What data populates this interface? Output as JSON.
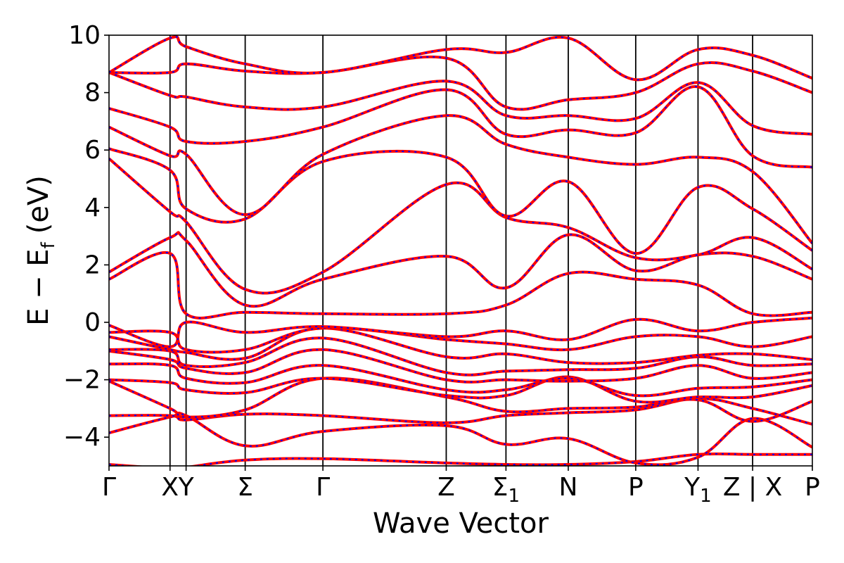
{
  "chart_data": {
    "type": "line",
    "title": "",
    "xlabel": "Wave Vector",
    "ylabel": "E − E_f (eV)",
    "ylabel_parts": {
      "main": "E − E",
      "sub": "f",
      "unit": "(eV)"
    },
    "ylim": [
      -5,
      10
    ],
    "yticks": [
      -4,
      -2,
      0,
      2,
      4,
      6,
      8,
      10
    ],
    "ytick_labels": [
      "−4",
      "−2",
      "0",
      "2",
      "4",
      "6",
      "8",
      "10"
    ],
    "xlim": [
      0,
      10
    ],
    "grid": false,
    "line_style": {
      "solid_color": "#ff0000",
      "dashed_color": "#0000ff"
    },
    "kpoints": [
      {
        "pos": 0.0,
        "label": "Γ",
        "sub": ""
      },
      {
        "pos": 0.95,
        "label": "X",
        "sub": ""
      },
      {
        "pos": 1.2,
        "label": "Y",
        "sub": ""
      },
      {
        "pos": 2.12,
        "label": "Σ",
        "sub": ""
      },
      {
        "pos": 3.33,
        "label": "Γ",
        "sub": ""
      },
      {
        "pos": 5.25,
        "label": "Z",
        "sub": ""
      },
      {
        "pos": 6.18,
        "label": "Σ",
        "sub": "1"
      },
      {
        "pos": 7.15,
        "label": "N",
        "sub": ""
      },
      {
        "pos": 8.2,
        "label": "P",
        "sub": ""
      },
      {
        "pos": 9.17,
        "label": "Y",
        "sub": "1"
      },
      {
        "pos": 10.02,
        "label": "Z | X",
        "sub": ""
      },
      {
        "pos": 10.95,
        "label": "P",
        "sub": ""
      }
    ],
    "bands": [
      {
        "name": "b01",
        "values": [
          -4.95,
          -5.1,
          -5.05,
          -4.8,
          -4.75,
          -4.9,
          -4.95,
          -4.95,
          -4.85,
          -4.6,
          -4.6,
          -4.6
        ]
      },
      {
        "name": "b02",
        "values": [
          -3.85,
          -3.3,
          -3.25,
          -4.3,
          -3.8,
          -3.6,
          -4.25,
          -4.05,
          -4.9,
          -4.7,
          -3.35,
          -4.35
        ]
      },
      {
        "name": "b03",
        "values": [
          -3.25,
          -3.25,
          -3.4,
          -3.2,
          -3.25,
          -3.5,
          -3.25,
          -3.15,
          -3.05,
          -2.65,
          -3.0,
          -3.55
        ]
      },
      {
        "name": "b04",
        "values": [
          -2.05,
          -3.0,
          -3.3,
          -3.05,
          -1.95,
          -2.6,
          -3.1,
          -3.0,
          -2.95,
          -2.7,
          -3.45,
          -2.75
        ]
      },
      {
        "name": "b05",
        "values": [
          -2.0,
          -2.1,
          -2.35,
          -2.45,
          -1.95,
          -2.55,
          -2.55,
          -1.9,
          -2.75,
          -2.6,
          -2.6,
          -2.2
        ]
      },
      {
        "name": "b06",
        "values": [
          -1.45,
          -1.5,
          -1.95,
          -2.1,
          -1.5,
          -2.35,
          -2.35,
          -1.95,
          -2.55,
          -2.3,
          -2.25,
          -2.0
        ]
      },
      {
        "name": "b07",
        "values": [
          -1.0,
          -1.3,
          -1.6,
          -1.75,
          -0.95,
          -2.0,
          -2.0,
          -2.05,
          -1.95,
          -1.5,
          -1.95,
          -1.75
        ]
      },
      {
        "name": "b08",
        "values": [
          -0.95,
          -1.0,
          -1.5,
          -1.4,
          -0.55,
          -1.75,
          -1.7,
          -1.65,
          -1.6,
          -1.2,
          -1.5,
          -1.45
        ]
      },
      {
        "name": "b09",
        "values": [
          -0.5,
          -0.95,
          -1.05,
          -1.25,
          -0.2,
          -1.2,
          -1.1,
          -1.4,
          -1.4,
          -1.15,
          -1.1,
          -1.3
        ]
      },
      {
        "name": "b10",
        "values": [
          -0.35,
          -0.35,
          -0.95,
          -0.95,
          -0.2,
          -0.6,
          -0.75,
          -0.95,
          -0.5,
          -0.5,
          -0.85,
          -0.5
        ]
      },
      {
        "name": "b11",
        "values": [
          -0.1,
          -0.85,
          0.0,
          -0.35,
          -0.15,
          -0.5,
          -0.3,
          -0.6,
          0.1,
          -0.3,
          0.0,
          0.15
        ]
      },
      {
        "name": "b12",
        "values": [
          1.5,
          2.4,
          0.3,
          0.35,
          0.3,
          0.3,
          0.6,
          1.7,
          1.5,
          1.3,
          0.3,
          0.35
        ]
      },
      {
        "name": "b13",
        "values": [
          1.75,
          2.95,
          2.85,
          0.6,
          1.5,
          2.3,
          1.2,
          3.05,
          1.8,
          2.35,
          2.3,
          1.5
        ]
      },
      {
        "name": "b14",
        "values": [
          5.7,
          3.85,
          3.5,
          1.15,
          1.75,
          4.8,
          3.65,
          3.3,
          2.25,
          2.35,
          2.95,
          1.85
        ]
      },
      {
        "name": "b15",
        "values": [
          6.05,
          5.3,
          3.95,
          3.6,
          5.6,
          5.75,
          3.7,
          4.9,
          2.4,
          4.7,
          3.95,
          2.5
        ]
      },
      {
        "name": "b16",
        "values": [
          6.8,
          5.8,
          5.85,
          3.75,
          5.85,
          7.2,
          6.2,
          5.75,
          5.5,
          5.75,
          5.25,
          2.75
        ]
      },
      {
        "name": "b17",
        "values": [
          7.45,
          6.8,
          6.3,
          6.3,
          6.8,
          8.1,
          6.55,
          6.7,
          6.6,
          8.2,
          5.8,
          5.4
        ]
      },
      {
        "name": "b18",
        "values": [
          8.7,
          7.9,
          7.85,
          7.5,
          7.5,
          8.4,
          7.2,
          7.2,
          7.1,
          8.35,
          6.85,
          6.55
        ]
      },
      {
        "name": "b19",
        "values": [
          8.7,
          8.7,
          9.0,
          8.75,
          8.7,
          9.2,
          7.5,
          7.75,
          8.0,
          9.0,
          8.75,
          8.0
        ]
      },
      {
        "name": "b20",
        "values": [
          8.7,
          9.9,
          9.6,
          9.0,
          8.7,
          9.5,
          9.4,
          9.9,
          8.45,
          9.5,
          9.3,
          8.5
        ]
      }
    ]
  }
}
